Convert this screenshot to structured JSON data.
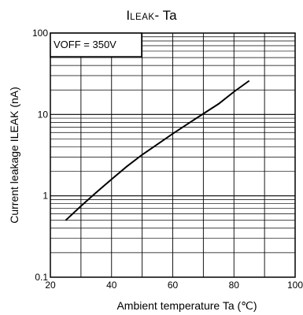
{
  "chart_data": {
    "type": "line",
    "title": {
      "prefix": "I",
      "sub": "LEAK",
      "suffix": " - Ta"
    },
    "xlabel": "Ambient temperature Ta (℃)",
    "ylabel": "Current leakage ILEAK (nA)",
    "xlim": [
      20,
      100
    ],
    "ylim": [
      0.1,
      100
    ],
    "y_scale": "log",
    "x_ticks": [
      "20",
      "40",
      "60",
      "80",
      "100"
    ],
    "y_ticks": [
      "0.1",
      "1",
      "10",
      "100"
    ],
    "grid": true,
    "annotation": "VOFF = 350V",
    "series": [
      {
        "x": [
          25,
          30,
          35,
          40,
          45,
          50,
          55,
          60,
          65,
          70,
          75,
          80,
          85
        ],
        "y": [
          0.5,
          0.75,
          1.1,
          1.6,
          2.3,
          3.2,
          4.3,
          5.8,
          7.7,
          10.2,
          13.5,
          19,
          26
        ]
      }
    ]
  }
}
